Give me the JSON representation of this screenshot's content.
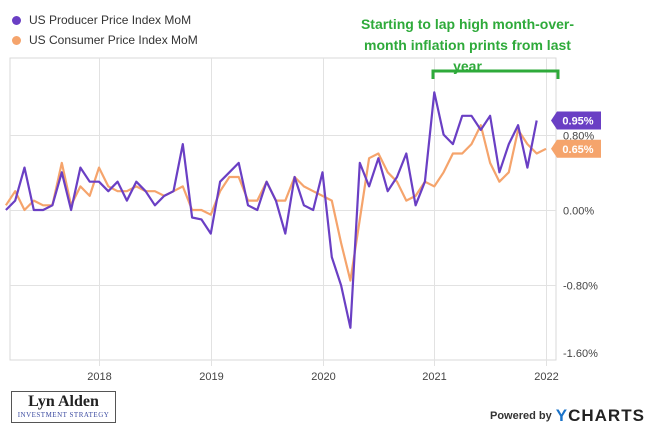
{
  "chart_data": {
    "type": "line",
    "x_start": "2017-03",
    "x_end": "2022-02",
    "x_ticks": [
      "2018",
      "2019",
      "2020",
      "2021",
      "2022"
    ],
    "y_ticks": [
      "0.80%",
      "0.00%",
      "-0.80%",
      "-1.60%"
    ],
    "ylim": [
      -1.6,
      1.6
    ],
    "grid": true,
    "legend_position": "top-left",
    "series": [
      {
        "name": "US Producer Price Index MoM",
        "color": "#6a3fc4",
        "last_label": "0.95%",
        "points": [
          [
            "2017-03",
            0.0
          ],
          [
            "2017-04",
            0.1
          ],
          [
            "2017-05",
            0.45
          ],
          [
            "2017-06",
            0.0
          ],
          [
            "2017-07",
            0.0
          ],
          [
            "2017-08",
            0.05
          ],
          [
            "2017-09",
            0.4
          ],
          [
            "2017-10",
            0.0
          ],
          [
            "2017-11",
            0.45
          ],
          [
            "2017-12",
            0.3
          ],
          [
            "2018-01",
            0.3
          ],
          [
            "2018-02",
            0.2
          ],
          [
            "2018-03",
            0.3
          ],
          [
            "2018-04",
            0.1
          ],
          [
            "2018-05",
            0.3
          ],
          [
            "2018-06",
            0.2
          ],
          [
            "2018-07",
            0.05
          ],
          [
            "2018-08",
            0.15
          ],
          [
            "2018-09",
            0.2
          ],
          [
            "2018-10",
            0.7
          ],
          [
            "2018-11",
            -0.08
          ],
          [
            "2018-12",
            -0.1
          ],
          [
            "2019-01",
            -0.25
          ],
          [
            "2019-02",
            0.3
          ],
          [
            "2019-03",
            0.4
          ],
          [
            "2019-04",
            0.5
          ],
          [
            "2019-05",
            0.05
          ],
          [
            "2019-06",
            0.0
          ],
          [
            "2019-07",
            0.3
          ],
          [
            "2019-08",
            0.1
          ],
          [
            "2019-09",
            -0.25
          ],
          [
            "2019-10",
            0.35
          ],
          [
            "2019-11",
            0.05
          ],
          [
            "2019-12",
            0.0
          ],
          [
            "2020-01",
            0.4
          ],
          [
            "2020-02",
            -0.5
          ],
          [
            "2020-03",
            -0.8
          ],
          [
            "2020-04",
            -1.25
          ],
          [
            "2020-05",
            0.5
          ],
          [
            "2020-06",
            0.25
          ],
          [
            "2020-07",
            0.55
          ],
          [
            "2020-08",
            0.2
          ],
          [
            "2020-09",
            0.35
          ],
          [
            "2020-10",
            0.6
          ],
          [
            "2020-11",
            0.05
          ],
          [
            "2020-12",
            0.3
          ],
          [
            "2021-01",
            1.25
          ],
          [
            "2021-02",
            0.8
          ],
          [
            "2021-03",
            0.7
          ],
          [
            "2021-04",
            1.0
          ],
          [
            "2021-05",
            1.0
          ],
          [
            "2021-06",
            0.85
          ],
          [
            "2021-07",
            1.0
          ],
          [
            "2021-08",
            0.4
          ],
          [
            "2021-09",
            0.7
          ],
          [
            "2021-10",
            0.9
          ],
          [
            "2021-11",
            0.45
          ],
          [
            "2021-12",
            0.95
          ]
        ]
      },
      {
        "name": "US Consumer Price Index MoM",
        "color": "#f5a46c",
        "last_label": "0.65%",
        "points": [
          [
            "2017-03",
            0.05
          ],
          [
            "2017-04",
            0.2
          ],
          [
            "2017-05",
            0.0
          ],
          [
            "2017-06",
            0.1
          ],
          [
            "2017-07",
            0.05
          ],
          [
            "2017-08",
            0.05
          ],
          [
            "2017-09",
            0.5
          ],
          [
            "2017-10",
            0.05
          ],
          [
            "2017-11",
            0.25
          ],
          [
            "2017-12",
            0.15
          ],
          [
            "2018-01",
            0.45
          ],
          [
            "2018-02",
            0.25
          ],
          [
            "2018-03",
            0.2
          ],
          [
            "2018-04",
            0.2
          ],
          [
            "2018-05",
            0.25
          ],
          [
            "2018-06",
            0.2
          ],
          [
            "2018-07",
            0.2
          ],
          [
            "2018-08",
            0.15
          ],
          [
            "2018-09",
            0.2
          ],
          [
            "2018-10",
            0.25
          ],
          [
            "2018-11",
            0.0
          ],
          [
            "2018-12",
            0.0
          ],
          [
            "2019-01",
            -0.05
          ],
          [
            "2019-02",
            0.2
          ],
          [
            "2019-03",
            0.35
          ],
          [
            "2019-04",
            0.35
          ],
          [
            "2019-05",
            0.1
          ],
          [
            "2019-06",
            0.1
          ],
          [
            "2019-07",
            0.3
          ],
          [
            "2019-08",
            0.1
          ],
          [
            "2019-09",
            0.1
          ],
          [
            "2019-10",
            0.35
          ],
          [
            "2019-11",
            0.25
          ],
          [
            "2019-12",
            0.2
          ],
          [
            "2020-01",
            0.15
          ],
          [
            "2020-02",
            0.1
          ],
          [
            "2020-03",
            -0.35
          ],
          [
            "2020-04",
            -0.75
          ],
          [
            "2020-05",
            -0.1
          ],
          [
            "2020-06",
            0.55
          ],
          [
            "2020-07",
            0.6
          ],
          [
            "2020-08",
            0.4
          ],
          [
            "2020-09",
            0.3
          ],
          [
            "2020-10",
            0.1
          ],
          [
            "2020-11",
            0.15
          ],
          [
            "2020-12",
            0.3
          ],
          [
            "2021-01",
            0.25
          ],
          [
            "2021-02",
            0.4
          ],
          [
            "2021-03",
            0.6
          ],
          [
            "2021-04",
            0.6
          ],
          [
            "2021-05",
            0.7
          ],
          [
            "2021-06",
            0.9
          ],
          [
            "2021-07",
            0.5
          ],
          [
            "2021-08",
            0.3
          ],
          [
            "2021-09",
            0.4
          ],
          [
            "2021-10",
            0.85
          ],
          [
            "2021-11",
            0.7
          ],
          [
            "2021-12",
            0.6
          ],
          [
            "2022-01",
            0.65
          ]
        ]
      }
    ],
    "annotation": {
      "text": "Starting to lap high month-over-month inflation prints from last year",
      "color": "#2eaa3a",
      "bracket_from": "2021-01",
      "bracket_to": "2022-01"
    }
  },
  "branding": {
    "author_name": "Lyn Alden",
    "author_tagline": "INVESTMENT STRATEGY",
    "powered_by": "Powered by",
    "logo_y": "Y",
    "logo_rest": "CHARTS"
  }
}
